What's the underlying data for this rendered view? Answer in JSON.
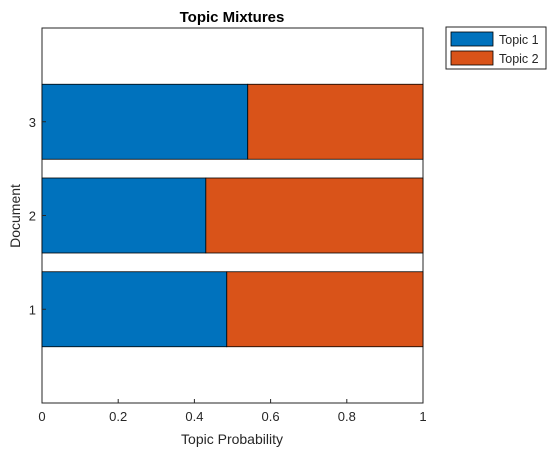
{
  "chart_data": {
    "type": "bar",
    "orientation": "horizontal",
    "stacked": true,
    "title": "Topic Mixtures",
    "xlabel": "Topic Probability",
    "ylabel": "Document",
    "xlim": [
      0,
      1
    ],
    "ylim": [
      0,
      4
    ],
    "xticks": [
      "0",
      "0.2",
      "0.4",
      "0.6",
      "0.8",
      "1"
    ],
    "yticks": [
      "1",
      "2",
      "3"
    ],
    "categories": [
      "1",
      "2",
      "3"
    ],
    "series": [
      {
        "name": "Topic 1",
        "values": [
          0.485,
          0.43,
          0.54
        ],
        "color": "#0072BD"
      },
      {
        "name": "Topic 2",
        "values": [
          0.515,
          0.57,
          0.46
        ],
        "color": "#D95319"
      }
    ],
    "grid": false,
    "legend_position": "outside-top-right"
  }
}
